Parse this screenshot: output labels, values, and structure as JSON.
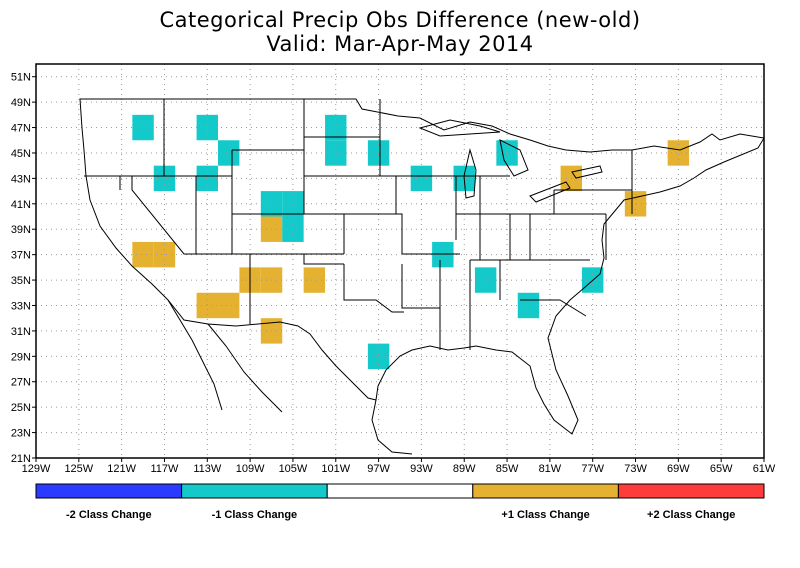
{
  "title": {
    "line1": "Categorical Precip Obs Difference (new-old)",
    "line2": "Valid: Mar-Apr-May 2014"
  },
  "map": {
    "lon_range": [
      -129,
      -61
    ],
    "lat_range": [
      21,
      52
    ],
    "lon_ticks": [
      "129W",
      "125W",
      "121W",
      "117W",
      "113W",
      "109W",
      "105W",
      "101W",
      "97W",
      "93W",
      "89W",
      "85W",
      "81W",
      "77W",
      "73W",
      "69W",
      "65W",
      "61W"
    ],
    "lat_ticks": [
      "21N",
      "23N",
      "25N",
      "27N",
      "29N",
      "31N",
      "33N",
      "35N",
      "37N",
      "39N",
      "41N",
      "43N",
      "45N",
      "47N",
      "49N",
      "51N"
    ],
    "grid": true,
    "cell_size_deg": 2,
    "colors": {
      "minus2": "#2a3bff",
      "minus1": "#13c9c9",
      "none": "#ffffff",
      "plus1": "#e5b130",
      "plus2": "#ff3c3c"
    },
    "cells": [
      {
        "lon": -119,
        "lat": 47,
        "change": -1
      },
      {
        "lon": -113,
        "lat": 47,
        "change": -1
      },
      {
        "lon": -101,
        "lat": 47,
        "change": -1
      },
      {
        "lon": -111,
        "lat": 45,
        "change": -1
      },
      {
        "lon": -101,
        "lat": 45,
        "change": -1
      },
      {
        "lon": -97,
        "lat": 45,
        "change": -1
      },
      {
        "lon": -85,
        "lat": 45,
        "change": -1
      },
      {
        "lon": -69,
        "lat": 45,
        "change": 1
      },
      {
        "lon": -117,
        "lat": 43,
        "change": -1
      },
      {
        "lon": -113,
        "lat": 43,
        "change": -1
      },
      {
        "lon": -93,
        "lat": 43,
        "change": -1
      },
      {
        "lon": -89,
        "lat": 43,
        "change": -1
      },
      {
        "lon": -79,
        "lat": 43,
        "change": 1
      },
      {
        "lon": -107,
        "lat": 41,
        "change": -1
      },
      {
        "lon": -105,
        "lat": 41,
        "change": -1
      },
      {
        "lon": -73,
        "lat": 41,
        "change": 1
      },
      {
        "lon": -107,
        "lat": 39,
        "change": 1
      },
      {
        "lon": -105,
        "lat": 39,
        "change": -1
      },
      {
        "lon": -117,
        "lat": 37,
        "change": 1
      },
      {
        "lon": -119,
        "lat": 37,
        "change": 1
      },
      {
        "lon": -91,
        "lat": 37,
        "change": -1
      },
      {
        "lon": -109,
        "lat": 35,
        "change": 1
      },
      {
        "lon": -107,
        "lat": 35,
        "change": 1
      },
      {
        "lon": -103,
        "lat": 35,
        "change": 1
      },
      {
        "lon": -87,
        "lat": 35,
        "change": -1
      },
      {
        "lon": -77,
        "lat": 35,
        "change": -1
      },
      {
        "lon": -113,
        "lat": 33,
        "change": 1
      },
      {
        "lon": -111,
        "lat": 33,
        "change": 1
      },
      {
        "lon": -83,
        "lat": 33,
        "change": -1
      },
      {
        "lon": -107,
        "lat": 31,
        "change": 1
      },
      {
        "lon": -97,
        "lat": 29,
        "change": -1
      }
    ]
  },
  "legend": {
    "items": [
      {
        "label": "-2 Class Change",
        "color": "#2a3bff"
      },
      {
        "label": "-1 Class Change",
        "color": "#13c9c9"
      },
      {
        "label": "",
        "color": "#ffffff"
      },
      {
        "label": "+1 Class Change",
        "color": "#e5b130"
      },
      {
        "label": "+2 Class Change",
        "color": "#ff3c3c"
      }
    ]
  }
}
